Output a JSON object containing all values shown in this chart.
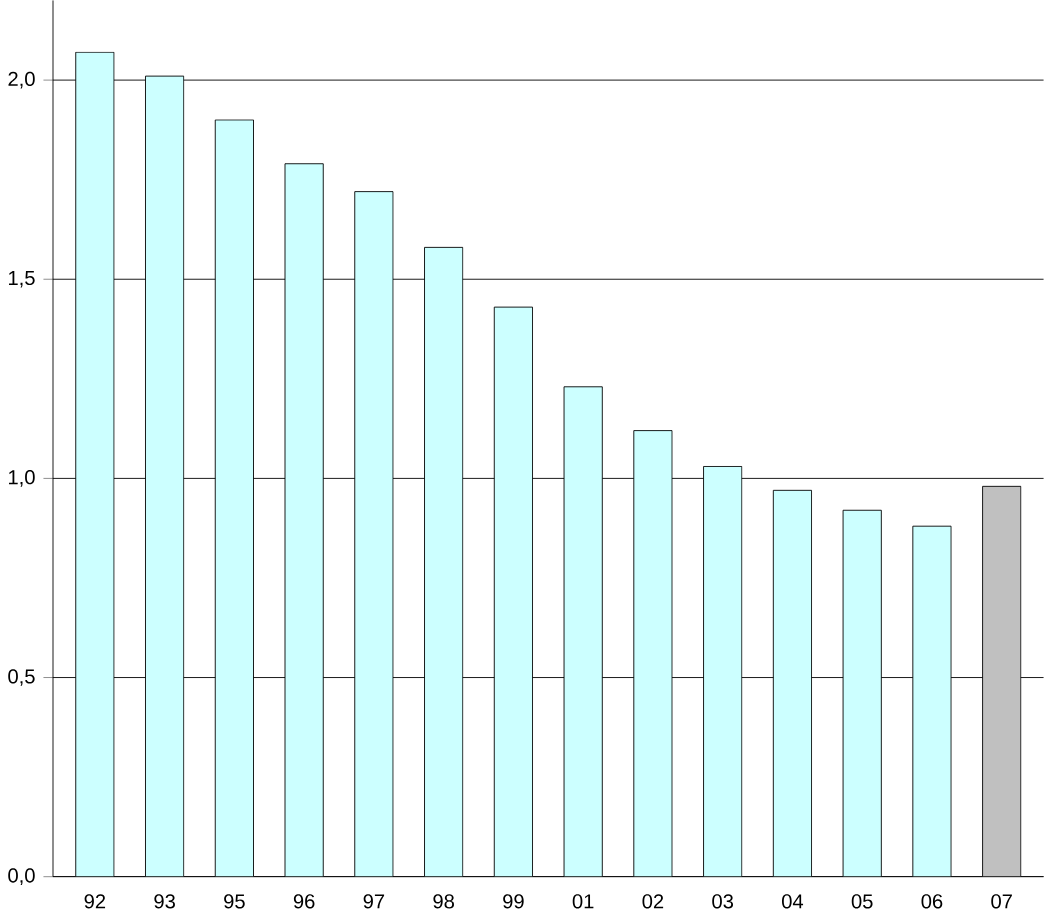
{
  "chart_data": {
    "type": "bar",
    "categories": [
      "92",
      "93",
      "95",
      "96",
      "97",
      "98",
      "99",
      "01",
      "02",
      "03",
      "04",
      "05",
      "06",
      "07"
    ],
    "values": [
      2.07,
      2.01,
      1.9,
      1.79,
      1.72,
      1.58,
      1.43,
      1.23,
      1.12,
      1.03,
      0.97,
      0.92,
      0.88,
      0.98
    ],
    "colors": [
      "#ccffff",
      "#ccffff",
      "#ccffff",
      "#ccffff",
      "#ccffff",
      "#ccffff",
      "#ccffff",
      "#ccffff",
      "#ccffff",
      "#ccffff",
      "#ccffff",
      "#ccffff",
      "#ccffff",
      "#c0c0c0"
    ],
    "ylim": [
      0,
      2.2
    ],
    "yticks": [
      {
        "value": 0,
        "label": "0,0"
      },
      {
        "value": 0.5,
        "label": "0,5"
      },
      {
        "value": 1,
        "label": "1,0"
      },
      {
        "value": 1.5,
        "label": "1,5"
      },
      {
        "value": 2,
        "label": "2,0"
      }
    ],
    "grid": "y"
  }
}
